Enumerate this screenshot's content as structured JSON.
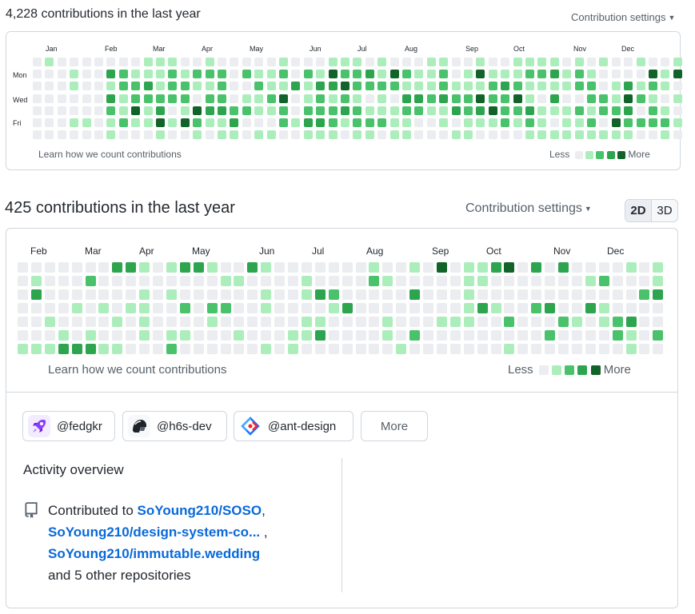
{
  "top_card": {
    "title": "4,228 contributions in the last year",
    "settings_label": "Contribution settings",
    "months": [
      "Jan",
      "Feb",
      "Mar",
      "Apr",
      "May",
      "Jun",
      "Jul",
      "Aug",
      "Sep",
      "Oct",
      "Nov",
      "Dec"
    ],
    "days": [
      "Mon",
      "Wed",
      "Fri"
    ],
    "learn_link": "Learn how we count contributions",
    "legend_less": "Less",
    "legend_more": "More"
  },
  "bottom_card": {
    "title": "425 contributions in the last year",
    "settings_label": "Contribution settings",
    "view_toggle": [
      "2D",
      "3D"
    ],
    "months": [
      "Feb",
      "Mar",
      "Apr",
      "May",
      "Jun",
      "Jul",
      "Aug",
      "Sep",
      "Oct",
      "Nov",
      "Dec"
    ],
    "learn_link": "Learn how we count contributions",
    "legend_less": "Less",
    "legend_more": "More"
  },
  "organizations": [
    {
      "handle": "@fedgkr",
      "icon": "rocket-icon",
      "color": "#7b2cf0"
    },
    {
      "handle": "@h6s-dev",
      "icon": "helmet-icon",
      "color": "#1f2328"
    },
    {
      "handle": "@ant-design",
      "icon": "ant-design-logo-icon",
      "color": "#1677ff"
    }
  ],
  "more_button": "More",
  "activity": {
    "heading": "Activity overview",
    "prefix": "Contributed to",
    "repos": [
      "SoYoung210/SOSO",
      "SoYoung210/design-system-co...",
      "SoYoung210/immutable.wedding"
    ],
    "sep1": ",",
    "sep2": " ,",
    "suffix": "and 5 other repositories"
  },
  "colors": {
    "level0": "#ebedf0",
    "level1": "#aceebb",
    "level2": "#4ac26b",
    "level3": "#2da44e",
    "level4": "#116329",
    "link": "#0969da"
  }
}
